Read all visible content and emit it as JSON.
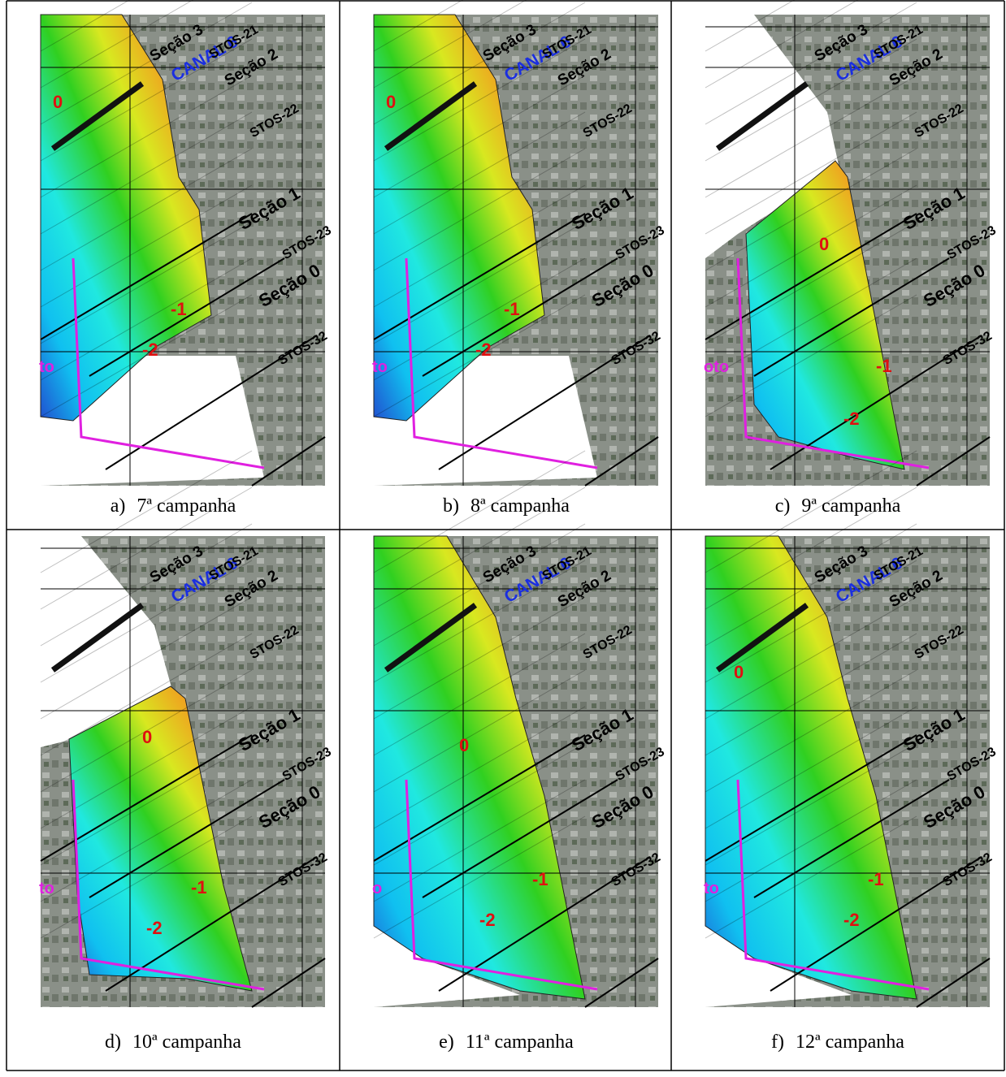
{
  "panels": [
    {
      "label": "a)",
      "caption": "7ª campanha",
      "map_labels": [
        "Seção 3",
        "CANAL 6",
        "STOS-21",
        "Seção 2",
        "STOS-22",
        "Seção 1",
        "STOS-23",
        "Seção 0",
        "STOS-32",
        "0",
        "-1",
        "-2",
        "to"
      ]
    },
    {
      "label": "b)",
      "caption": "8ª campanha",
      "map_labels": [
        "Seção 3",
        "CANAL 6",
        "STOS-21",
        "Seção 2",
        "STOS-22",
        "Seção 1",
        "STOS-23",
        "Seção 0",
        "STOS-32",
        "0",
        "-1",
        "-2",
        "to"
      ]
    },
    {
      "label": "c)",
      "caption": "9ª campanha",
      "map_labels": [
        "Seção 3",
        "CANAL 6",
        "STOS-21",
        "Seção 2",
        "STOS-22",
        "Seção 1",
        "STOS-23",
        "Seção 0",
        "STOS-32",
        "0",
        "-1",
        "-2",
        "oto"
      ]
    },
    {
      "label": "d)",
      "caption": "10ª campanha",
      "map_labels": [
        "Seção 3",
        "CANAL 6",
        "STOS-21",
        "Seção 2",
        "STOS-22",
        "Seção 1",
        "STOS-23",
        "Seção 0",
        "STOS-32",
        "0",
        "-1",
        "-2",
        "to"
      ]
    },
    {
      "label": "e)",
      "caption": "11ª campanha",
      "map_labels": [
        "Seção 3",
        "CANAL 6",
        "STOS-21",
        "Seção 2",
        "STOS-22",
        "Seção 1",
        "STOS-23",
        "Seção 0",
        "STOS-32",
        "0",
        "-1",
        "-2",
        "o"
      ]
    },
    {
      "label": "f)",
      "caption": "12ª campanha",
      "map_labels": [
        "Seção 3",
        "CANAL 6",
        "STOS-21",
        "Seção 2",
        "STOS-22",
        "Seção 1",
        "STOS-23",
        "Seção 0",
        "STOS-32",
        "0",
        "-1",
        "-2",
        "to"
      ]
    }
  ]
}
